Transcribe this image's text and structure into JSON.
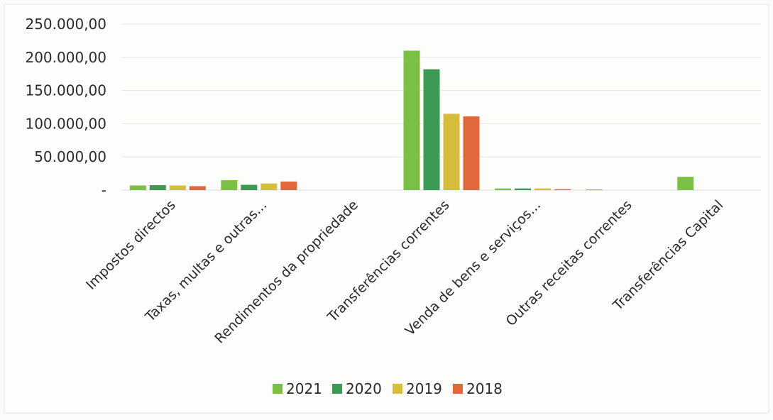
{
  "chart_data": {
    "type": "bar",
    "title": "",
    "xlabel": "",
    "ylabel": "",
    "ylim": [
      0,
      250000
    ],
    "y_ticks": [
      {
        "value": 0,
        "label": "-"
      },
      {
        "value": 50000,
        "label": "50.000,00"
      },
      {
        "value": 100000,
        "label": "100.000,00"
      },
      {
        "value": 150000,
        "label": "150.000,00"
      },
      {
        "value": 200000,
        "label": "200.000,00"
      },
      {
        "value": 250000,
        "label": "250.000,00"
      }
    ],
    "categories": [
      "Impostos directos",
      "Taxas, multas e outras...",
      "Rendimentos da propriedade",
      "Transferências correntes",
      "Venda de bens e serviços...",
      "Outras receitas correntes",
      "Transferências Capital"
    ],
    "series": [
      {
        "name": "2021",
        "color": "#7cbf45",
        "values": [
          7000,
          15000,
          0,
          210000,
          2500,
          1000,
          20000
        ]
      },
      {
        "name": "2020",
        "color": "#3d9a55",
        "values": [
          7500,
          8000,
          0,
          182000,
          2500,
          0,
          0
        ]
      },
      {
        "name": "2019",
        "color": "#d7bd3c",
        "values": [
          7000,
          10000,
          0,
          115000,
          2500,
          0,
          0
        ]
      },
      {
        "name": "2018",
        "color": "#e0683a",
        "values": [
          6000,
          13000,
          0,
          111000,
          1500,
          0,
          0
        ]
      }
    ],
    "grid": true,
    "legend_position": "bottom"
  }
}
